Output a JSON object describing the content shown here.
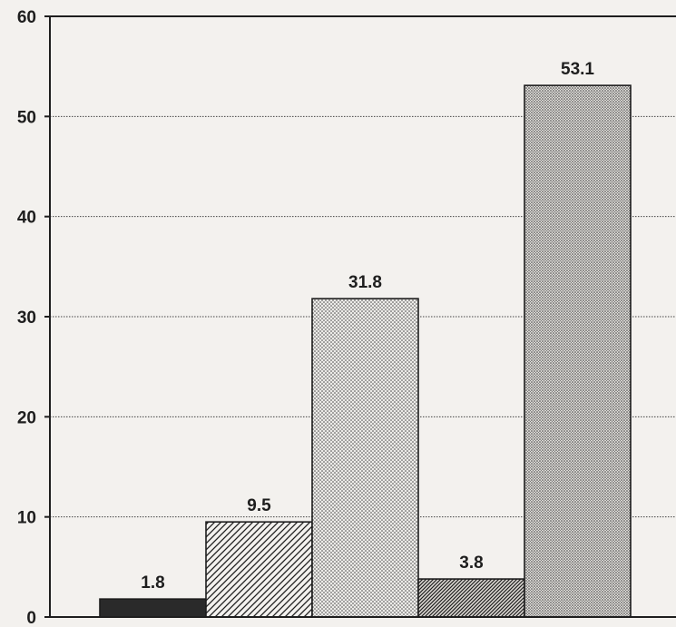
{
  "chart_data": {
    "type": "bar",
    "categories": [
      "",
      "",
      "",
      "",
      ""
    ],
    "values": [
      1.8,
      9.5,
      31.8,
      3.8,
      53.1
    ],
    "data_labels": [
      "1.8",
      "9.5",
      "31.8",
      "3.8",
      "53.1"
    ],
    "ylim": [
      0,
      60
    ],
    "yticks": [
      0,
      10,
      20,
      30,
      40,
      50,
      60
    ],
    "ytick_labels": [
      "0",
      "10",
      "20",
      "30",
      "40",
      "50",
      "60"
    ],
    "grid": "horizontal dotted",
    "fill_patterns": [
      "solid-dark",
      "diagonal-hatch",
      "dots",
      "dense-diagonal-hatch",
      "dense-dots"
    ],
    "colors": {
      "background": "#f3f1ee",
      "ink": "#1e1e1e"
    }
  }
}
